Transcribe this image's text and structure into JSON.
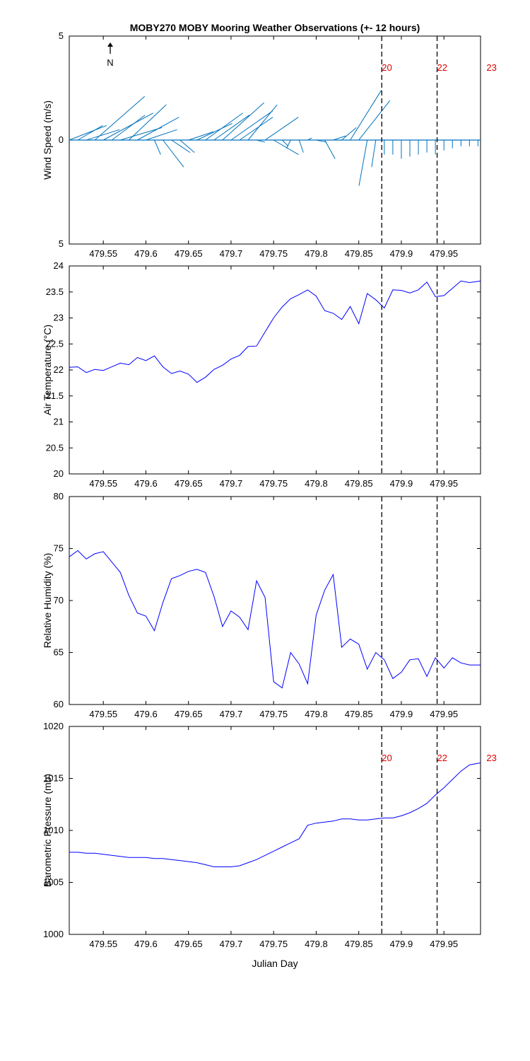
{
  "title": "MOBY270 MOBY Mooring Weather Observations (+- 12 hours)",
  "xlabel": "Julian Day",
  "north_label": "N",
  "colors": {
    "axes": "#000000",
    "line": "#0000ff",
    "wind": "#0072bd",
    "marker_label": "#dd0000",
    "vline": "#000000"
  },
  "xlim": [
    479.51,
    479.993
  ],
  "xticks": [
    479.55,
    479.6,
    479.65,
    479.7,
    479.75,
    479.8,
    479.85,
    479.9,
    479.95
  ],
  "xtick_labels": [
    "479.55",
    "479.6",
    "479.65",
    "479.7",
    "479.75",
    "479.8",
    "479.85",
    "479.9",
    "479.95"
  ],
  "markers": {
    "lines_x": [
      479.877,
      479.942
    ],
    "labels": [
      {
        "text": "20",
        "x": 479.877
      },
      {
        "text": "22",
        "x": 479.942
      },
      {
        "text": "23",
        "x": 480.0
      }
    ]
  },
  "chart_data": [
    {
      "type": "line",
      "subtype": "wind-vector",
      "ylabel": "Wind Speed (m/s)",
      "ylim": [
        -5,
        5
      ],
      "ytick_labels": [
        "5",
        "0",
        "5"
      ],
      "series": [
        {
          "x": [
            479.51,
            479.52,
            479.53,
            479.54,
            479.55,
            479.56,
            479.57,
            479.58,
            479.59,
            479.6,
            479.61,
            479.62,
            479.63,
            479.64,
            479.65,
            479.66,
            479.67,
            479.68,
            479.69,
            479.7,
            479.71,
            479.72,
            479.73,
            479.74,
            479.75,
            479.76,
            479.77,
            479.78,
            479.79,
            479.8,
            479.81,
            479.82,
            479.83,
            479.84,
            479.85,
            479.86,
            479.87,
            479.88,
            479.89,
            479.9,
            479.91,
            479.92,
            479.93,
            479.94,
            479.95,
            479.96,
            479.97,
            479.98,
            479.99
          ],
          "u": [
            1.8,
            1.2,
            1.6,
            2.4,
            2.4,
            1.6,
            2.0,
            1.8,
            2.0,
            1.5,
            0.3,
            1.0,
            0.9,
            0.7,
            1.2,
            1.7,
            1.8,
            1.7,
            2.0,
            2.0,
            1.6,
            1.4,
            0.4,
            1.6,
            1.2,
            0.3,
            -0.2,
            0.2,
            0.2,
            0.5,
            0.5,
            0.6,
            0.7,
            1.5,
            1.5,
            -0.4,
            -0.2,
            0.0,
            0.0,
            0.0,
            0.0,
            0.0,
            0.0,
            0.0,
            0.0,
            0.0,
            0.0,
            0.0,
            0.0
          ],
          "v": [
            0.7,
            0.7,
            0.5,
            2.1,
            1.3,
            1.2,
            0.6,
            1.7,
            1.1,
            0.5,
            -0.7,
            -1.3,
            -0.6,
            -0.6,
            0.4,
            0.8,
            1.3,
            1.2,
            1.8,
            1.4,
            1.1,
            1.7,
            -0.1,
            1.1,
            -0.7,
            -0.3,
            -0.4,
            -0.6,
            0.1,
            -0.1,
            -0.9,
            0.2,
            0.6,
            2.4,
            1.9,
            -2.2,
            -1.3,
            -0.7,
            -0.7,
            -0.9,
            -0.8,
            -0.7,
            -0.6,
            -0.7,
            -0.5,
            -0.4,
            -0.3,
            -0.3,
            -0.3
          ]
        }
      ]
    },
    {
      "type": "line",
      "ylabel": "Air Temperature (°C)",
      "ylim": [
        20,
        24
      ],
      "yticks": [
        20,
        20.5,
        21,
        21.5,
        22,
        22.5,
        23,
        23.5,
        24
      ],
      "ytick_labels": [
        "20",
        "20.5",
        "21",
        "21.5",
        "22",
        "22.5",
        "23",
        "23.5",
        "24"
      ],
      "series": [
        {
          "x": [
            479.51,
            479.52,
            479.53,
            479.54,
            479.55,
            479.56,
            479.57,
            479.58,
            479.59,
            479.6,
            479.61,
            479.62,
            479.63,
            479.64,
            479.65,
            479.66,
            479.67,
            479.68,
            479.69,
            479.7,
            479.71,
            479.72,
            479.73,
            479.74,
            479.75,
            479.76,
            479.77,
            479.78,
            479.79,
            479.8,
            479.81,
            479.82,
            479.83,
            479.84,
            479.85,
            479.86,
            479.87,
            479.88,
            479.89,
            479.9,
            479.91,
            479.92,
            479.93,
            479.94,
            479.95,
            479.96,
            479.97,
            479.98,
            479.993
          ],
          "y": [
            22.05,
            22.06,
            21.95,
            22.01,
            21.99,
            22.06,
            22.13,
            22.1,
            22.24,
            22.18,
            22.27,
            22.06,
            21.93,
            21.98,
            21.92,
            21.76,
            21.86,
            22.01,
            22.09,
            22.21,
            22.28,
            22.45,
            22.46,
            22.73,
            23.0,
            23.21,
            23.37,
            23.45,
            23.54,
            23.42,
            23.14,
            23.09,
            22.97,
            23.22,
            22.89,
            23.47,
            23.35,
            23.19,
            23.54,
            23.53,
            23.48,
            23.54,
            23.69,
            23.41,
            23.43,
            23.57,
            23.71,
            23.68,
            23.71
          ]
        }
      ]
    },
    {
      "type": "line",
      "ylabel": "Relative Humidity (%)",
      "ylim": [
        60,
        80
      ],
      "yticks": [
        60,
        65,
        70,
        75,
        80
      ],
      "ytick_labels": [
        "60",
        "65",
        "70",
        "75",
        "80"
      ],
      "series": [
        {
          "x": [
            479.51,
            479.52,
            479.53,
            479.54,
            479.55,
            479.56,
            479.57,
            479.58,
            479.59,
            479.6,
            479.61,
            479.62,
            479.63,
            479.64,
            479.65,
            479.66,
            479.67,
            479.68,
            479.69,
            479.7,
            479.71,
            479.72,
            479.73,
            479.74,
            479.75,
            479.76,
            479.77,
            479.78,
            479.79,
            479.8,
            479.81,
            479.82,
            479.83,
            479.84,
            479.85,
            479.86,
            479.87,
            479.88,
            479.89,
            479.9,
            479.91,
            479.92,
            479.93,
            479.94,
            479.95,
            479.96,
            479.97,
            479.98,
            479.993
          ],
          "y": [
            74.2,
            74.8,
            74.0,
            74.5,
            74.7,
            73.7,
            72.7,
            70.5,
            68.8,
            68.5,
            67.1,
            69.8,
            72.1,
            72.4,
            72.8,
            73.0,
            72.7,
            70.4,
            67.5,
            69.0,
            68.4,
            67.2,
            71.9,
            70.3,
            62.2,
            61.6,
            65.0,
            63.9,
            62.0,
            68.6,
            71.0,
            72.5,
            65.5,
            66.3,
            65.8,
            63.4,
            65.0,
            64.3,
            62.5,
            63.1,
            64.3,
            64.4,
            62.7,
            64.5,
            63.5,
            64.5,
            64.0,
            63.8,
            63.8
          ]
        }
      ]
    },
    {
      "type": "line",
      "ylabel": "Barometric Pressure (mb)",
      "ylim": [
        1000,
        1020
      ],
      "yticks": [
        1000,
        1005,
        1010,
        1015,
        1020
      ],
      "ytick_labels": [
        "1000",
        "1005",
        "1010",
        "1015",
        "1020"
      ],
      "series": [
        {
          "x": [
            479.51,
            479.52,
            479.53,
            479.54,
            479.55,
            479.56,
            479.57,
            479.58,
            479.59,
            479.6,
            479.61,
            479.62,
            479.63,
            479.64,
            479.65,
            479.66,
            479.67,
            479.68,
            479.69,
            479.7,
            479.71,
            479.72,
            479.73,
            479.74,
            479.75,
            479.76,
            479.77,
            479.78,
            479.79,
            479.8,
            479.81,
            479.82,
            479.83,
            479.84,
            479.85,
            479.86,
            479.87,
            479.88,
            479.89,
            479.9,
            479.91,
            479.92,
            479.93,
            479.94,
            479.95,
            479.96,
            479.97,
            479.98,
            479.993
          ],
          "y": [
            1007.9,
            1007.9,
            1007.8,
            1007.8,
            1007.7,
            1007.6,
            1007.5,
            1007.4,
            1007.4,
            1007.4,
            1007.3,
            1007.3,
            1007.2,
            1007.1,
            1007.0,
            1006.9,
            1006.7,
            1006.5,
            1006.5,
            1006.5,
            1006.6,
            1006.9,
            1007.2,
            1007.6,
            1008.0,
            1008.4,
            1008.8,
            1009.2,
            1010.5,
            1010.7,
            1010.8,
            1010.9,
            1011.1,
            1011.1,
            1011.0,
            1011.0,
            1011.1,
            1011.2,
            1011.2,
            1011.4,
            1011.7,
            1012.1,
            1012.6,
            1013.4,
            1014.1,
            1014.9,
            1015.7,
            1016.3,
            1016.5
          ]
        }
      ]
    }
  ]
}
